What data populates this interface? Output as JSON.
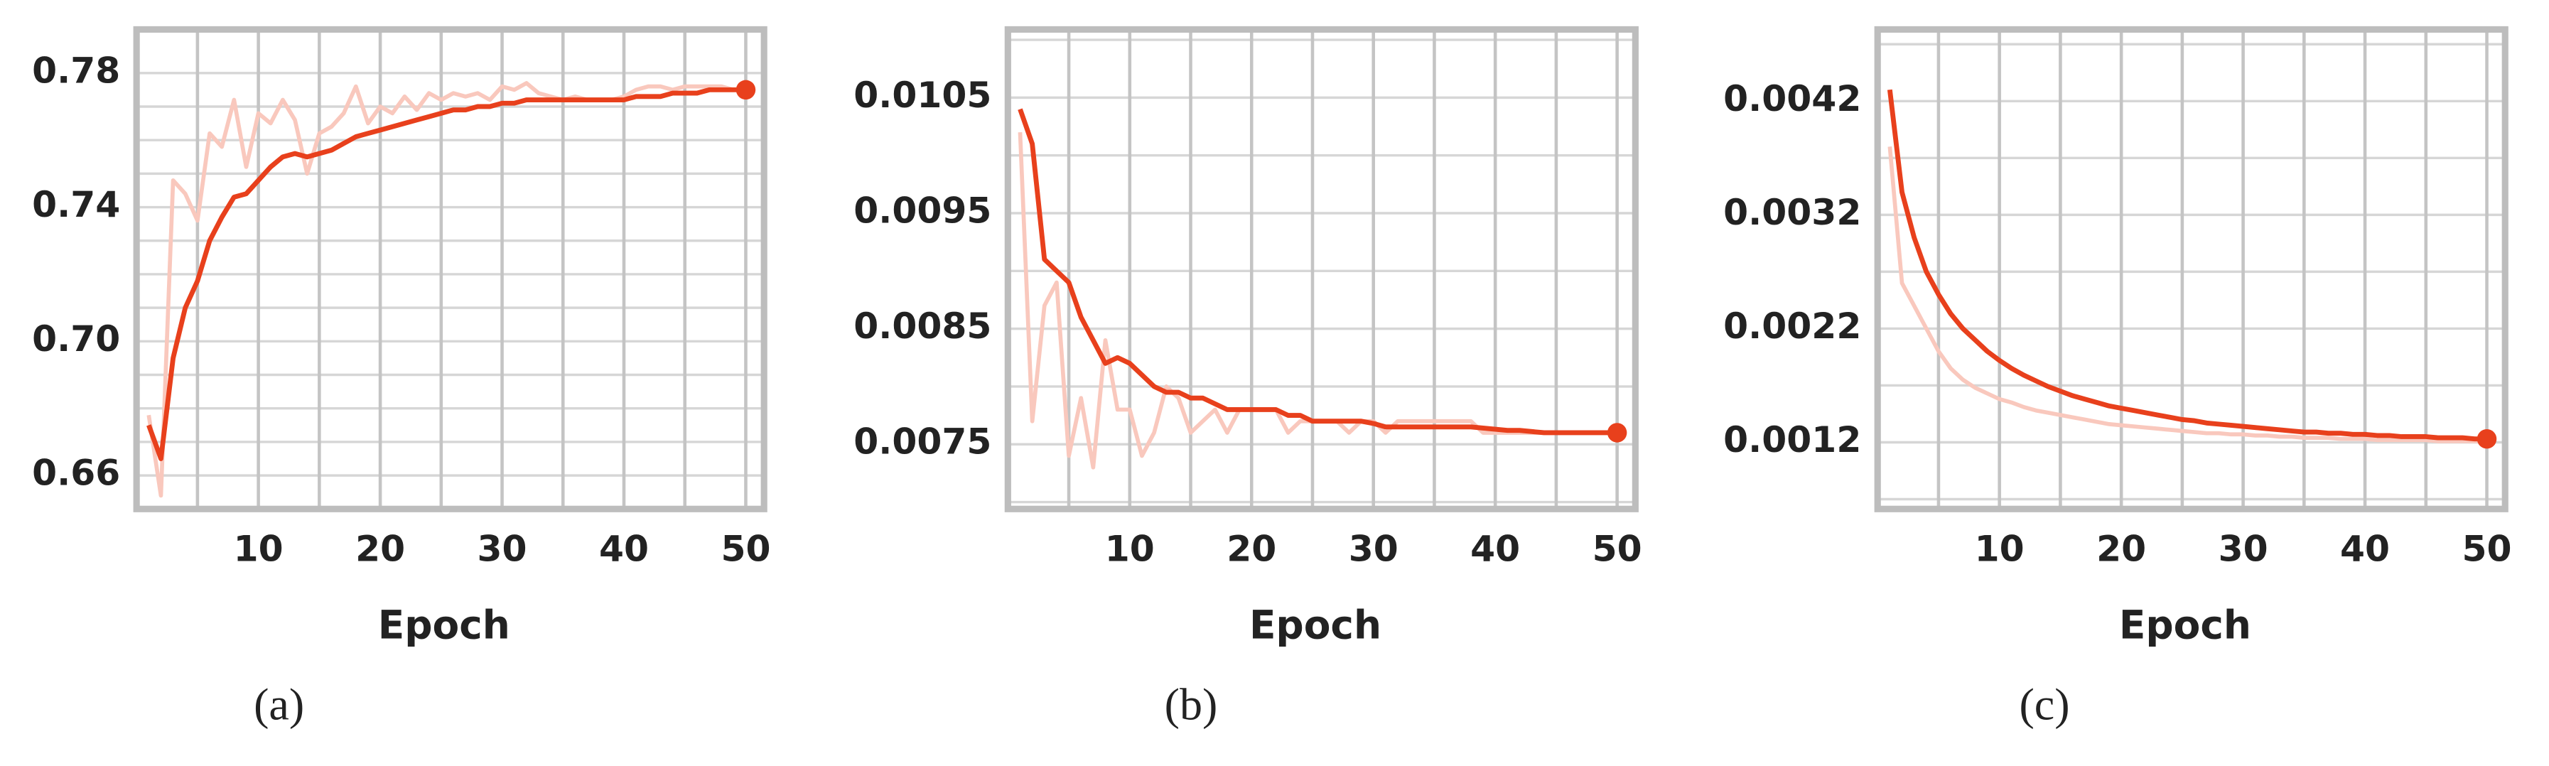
{
  "chart_data": [
    {
      "type": "line",
      "label": "(a)",
      "xlabel": "Epoch",
      "x": [
        1,
        2,
        3,
        4,
        5,
        6,
        7,
        8,
        9,
        10,
        11,
        12,
        13,
        14,
        15,
        16,
        17,
        18,
        19,
        20,
        21,
        22,
        23,
        24,
        25,
        26,
        27,
        28,
        29,
        30,
        31,
        32,
        33,
        34,
        35,
        36,
        37,
        38,
        39,
        40,
        41,
        42,
        43,
        44,
        45,
        46,
        47,
        48,
        49,
        50
      ],
      "xlim": [
        0,
        51.5
      ],
      "xticks": [
        10,
        20,
        30,
        40,
        50
      ],
      "xgrid": [
        5,
        10,
        15,
        20,
        25,
        30,
        35,
        40,
        45,
        50
      ],
      "ylim": [
        0.65,
        0.793
      ],
      "yticks": [
        0.66,
        {
          "value": 0.7,
          "label": "0.70"
        },
        0.74,
        0.78
      ],
      "ygrid": [
        0.66,
        0.67,
        0.68,
        0.69,
        0.7,
        0.71,
        0.72,
        0.73,
        0.74,
        0.75,
        0.76,
        0.77,
        0.78
      ],
      "series": [
        {
          "color": "#f9c8bd",
          "values": [
            0.678,
            0.654,
            0.748,
            0.744,
            0.736,
            0.762,
            0.758,
            0.772,
            0.752,
            0.768,
            0.765,
            0.772,
            0.766,
            0.75,
            0.762,
            0.764,
            0.768,
            0.776,
            0.765,
            0.77,
            0.768,
            0.773,
            0.769,
            0.774,
            0.772,
            0.774,
            0.773,
            0.774,
            0.772,
            0.776,
            0.775,
            0.777,
            0.774,
            0.773,
            0.772,
            0.773,
            0.772,
            0.772,
            0.772,
            0.773,
            0.775,
            0.776,
            0.776,
            0.775,
            0.776,
            0.776,
            0.776,
            0.776,
            0.775,
            0.775
          ]
        },
        {
          "color": "#e8401c",
          "values": [
            0.675,
            0.665,
            0.695,
            0.71,
            0.718,
            0.73,
            0.737,
            0.743,
            0.744,
            0.748,
            0.752,
            0.755,
            0.756,
            0.755,
            0.756,
            0.757,
            0.759,
            0.761,
            0.762,
            0.763,
            0.764,
            0.765,
            0.766,
            0.767,
            0.768,
            0.769,
            0.769,
            0.77,
            0.77,
            0.771,
            0.771,
            0.772,
            0.772,
            0.772,
            0.772,
            0.772,
            0.772,
            0.772,
            0.772,
            0.772,
            0.773,
            0.773,
            0.773,
            0.774,
            0.774,
            0.774,
            0.775,
            0.775,
            0.775,
            0.775
          ]
        }
      ]
    },
    {
      "type": "line",
      "label": "(b)",
      "xlabel": "Epoch",
      "x": [
        1,
        2,
        3,
        4,
        5,
        6,
        7,
        8,
        9,
        10,
        11,
        12,
        13,
        14,
        15,
        16,
        17,
        18,
        19,
        20,
        21,
        22,
        23,
        24,
        25,
        26,
        27,
        28,
        29,
        30,
        31,
        32,
        33,
        34,
        35,
        36,
        37,
        38,
        39,
        40,
        41,
        42,
        43,
        44,
        45,
        46,
        47,
        48,
        49,
        50
      ],
      "xlim": [
        0,
        51.5
      ],
      "xticks": [
        10,
        20,
        30,
        40,
        50
      ],
      "xgrid": [
        5,
        10,
        15,
        20,
        25,
        30,
        35,
        40,
        45,
        50
      ],
      "ylim": [
        0.00694,
        0.01109
      ],
      "yticks": [
        0.0075,
        0.0085,
        0.0095,
        0.0105
      ],
      "ygrid": [
        0.007,
        0.0075,
        0.008,
        0.0085,
        0.009,
        0.0095,
        0.01,
        0.0105,
        0.011
      ],
      "series": [
        {
          "color": "#f9c8bd",
          "values": [
            0.0102,
            0.0077,
            0.0087,
            0.0089,
            0.0074,
            0.0079,
            0.0073,
            0.0084,
            0.0078,
            0.0078,
            0.0074,
            0.0076,
            0.008,
            0.0079,
            0.0076,
            0.0077,
            0.0078,
            0.0076,
            0.0078,
            0.0078,
            0.0078,
            0.0078,
            0.0076,
            0.0077,
            0.0077,
            0.0077,
            0.0077,
            0.0076,
            0.0077,
            0.0077,
            0.0076,
            0.0077,
            0.0077,
            0.0077,
            0.0077,
            0.0077,
            0.0077,
            0.0077,
            0.0076,
            0.0076,
            0.0076,
            0.0076,
            0.0076,
            0.0076,
            0.0076,
            0.0076,
            0.0076,
            0.0076,
            0.0076,
            0.0076
          ]
        },
        {
          "color": "#e8401c",
          "values": [
            0.0104,
            0.0101,
            0.0091,
            0.009,
            0.0089,
            0.0086,
            0.0084,
            0.0082,
            0.00825,
            0.0082,
            0.0081,
            0.008,
            0.00795,
            0.00795,
            0.0079,
            0.0079,
            0.00785,
            0.0078,
            0.0078,
            0.0078,
            0.0078,
            0.0078,
            0.00775,
            0.00775,
            0.0077,
            0.0077,
            0.0077,
            0.0077,
            0.0077,
            0.00768,
            0.00765,
            0.00765,
            0.00765,
            0.00765,
            0.00765,
            0.00765,
            0.00765,
            0.00765,
            0.00764,
            0.00763,
            0.00762,
            0.00762,
            0.00761,
            0.0076,
            0.0076,
            0.0076,
            0.0076,
            0.0076,
            0.0076,
            0.0076
          ]
        }
      ]
    },
    {
      "type": "line",
      "label": "(c)",
      "xlabel": "Epoch",
      "x": [
        1,
        2,
        3,
        4,
        5,
        6,
        7,
        8,
        9,
        10,
        11,
        12,
        13,
        14,
        15,
        16,
        17,
        18,
        19,
        20,
        21,
        22,
        23,
        24,
        25,
        26,
        27,
        28,
        29,
        30,
        31,
        32,
        33,
        34,
        35,
        36,
        37,
        38,
        39,
        40,
        41,
        42,
        43,
        44,
        45,
        46,
        47,
        48,
        49,
        50
      ],
      "xlim": [
        0,
        51.5
      ],
      "xticks": [
        10,
        20,
        30,
        40,
        50
      ],
      "xgrid": [
        5,
        10,
        15,
        20,
        25,
        30,
        35,
        40,
        45,
        50
      ],
      "ylim": [
        0.000614,
        0.00483
      ],
      "yticks": [
        0.0012,
        0.0022,
        0.0032,
        0.0042
      ],
      "ygrid": [
        0.0007,
        0.0012,
        0.0017,
        0.0022,
        0.0027,
        0.0032,
        0.0037,
        0.0042,
        0.0047
      ],
      "series": [
        {
          "color": "#f9c8bd",
          "values": [
            0.0038,
            0.0026,
            0.0024,
            0.0022,
            0.002,
            0.00185,
            0.00175,
            0.00168,
            0.00163,
            0.00158,
            0.00155,
            0.00151,
            0.00148,
            0.00146,
            0.00144,
            0.00142,
            0.0014,
            0.00138,
            0.00136,
            0.00135,
            0.00134,
            0.00133,
            0.00132,
            0.00131,
            0.0013,
            0.00129,
            0.00128,
            0.00128,
            0.00127,
            0.00127,
            0.00126,
            0.00126,
            0.00125,
            0.00125,
            0.00124,
            0.00124,
            0.00124,
            0.00123,
            0.00123,
            0.00123,
            0.00122,
            0.00122,
            0.00122,
            0.00122,
            0.00122,
            0.00121,
            0.00121,
            0.00121,
            0.00121,
            0.00121
          ]
        },
        {
          "color": "#e8401c",
          "values": [
            0.0043,
            0.0034,
            0.003,
            0.0027,
            0.0025,
            0.00233,
            0.0022,
            0.0021,
            0.002,
            0.00192,
            0.00185,
            0.00179,
            0.00174,
            0.00169,
            0.00165,
            0.00161,
            0.00158,
            0.00155,
            0.00152,
            0.0015,
            0.00148,
            0.00146,
            0.00144,
            0.00142,
            0.0014,
            0.00139,
            0.00137,
            0.00136,
            0.00135,
            0.00134,
            0.00133,
            0.00132,
            0.00131,
            0.0013,
            0.00129,
            0.00129,
            0.00128,
            0.00128,
            0.00127,
            0.00127,
            0.00126,
            0.00126,
            0.00125,
            0.00125,
            0.00125,
            0.00124,
            0.00124,
            0.00124,
            0.00123,
            0.00123
          ]
        }
      ]
    }
  ]
}
